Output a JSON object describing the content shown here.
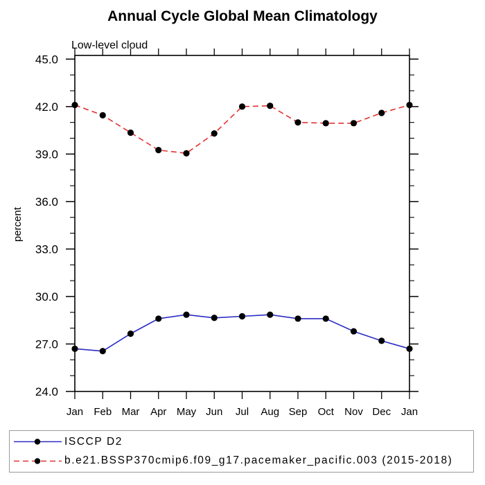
{
  "title": "Annual Cycle Global Mean Climatology",
  "subtitle": "Low-level cloud",
  "chart_data": {
    "type": "line",
    "x_categories": [
      "Jan",
      "Feb",
      "Mar",
      "Apr",
      "May",
      "Jun",
      "Jul",
      "Aug",
      "Sep",
      "Oct",
      "Nov",
      "Dec",
      "Jan"
    ],
    "ylabel": "percent",
    "y_axis": {
      "min": 24.0,
      "max": 45.0,
      "major_step": 3.0,
      "minor_step": 1.0,
      "tick_labels": [
        "24.0",
        "27.0",
        "30.0",
        "33.0",
        "36.0",
        "39.0",
        "42.0",
        "45.0"
      ]
    },
    "grid": false,
    "legend_position": "bottom",
    "marker": "filled-circle",
    "marker_color": "#000000",
    "series": [
      {
        "name": "ISCCP D2",
        "color": "#2a2ac4",
        "line_style": "solid",
        "values": [
          26.7,
          26.55,
          27.65,
          28.6,
          28.85,
          28.65,
          28.75,
          28.85,
          28.6,
          28.6,
          27.8,
          27.2,
          26.7
        ]
      },
      {
        "name": "b.e21.BSSP370cmip6.f09_g17.pacemaker_pacific.003 (2015-2018)",
        "color": "#e53131",
        "line_style": "dashed",
        "values": [
          42.1,
          41.45,
          40.35,
          39.25,
          39.05,
          40.3,
          42.0,
          42.05,
          41.0,
          40.95,
          40.95,
          41.6,
          42.1
        ]
      }
    ]
  }
}
